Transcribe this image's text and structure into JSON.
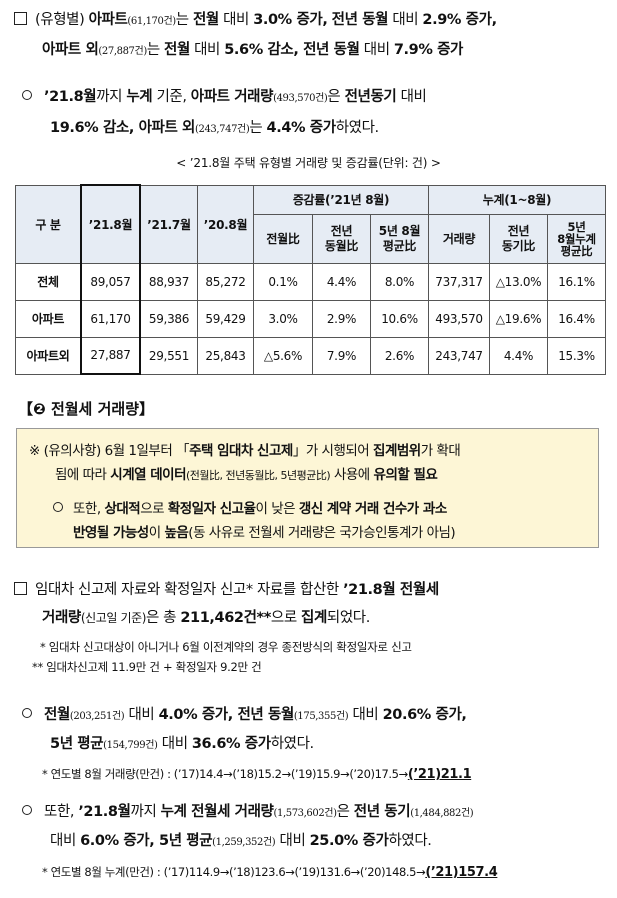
{
  "p1": {
    "a": "(유형별)",
    "b": "아파트",
    "c": "(61,170건)",
    "d": "는",
    "e": "전월",
    "f": "대비",
    "g": "3.0% 증가,",
    "h": "전년 동월",
    "i": "대비",
    "j": "2.9% 증가,",
    "k": "아파트 외",
    "l": "(27,887건)",
    "m": "는",
    "n": "전월",
    "o": "대비",
    "p": "5.6% 감소, 전년 동월",
    "q": "대비",
    "r": "7.9% 증가"
  },
  "p2": {
    "a": "’21.8월",
    "b": "까지",
    "c": "누계",
    "d": "기준,",
    "e": "아파트 거래량",
    "f": "(493,570건)",
    "g": "은",
    "h": "전년동기",
    "i": "대비",
    "j": "19.6% 감소, 아파트 외",
    "k": "(243,747건)",
    "l": "는",
    "m": "4.4% 증가",
    "n": "하였다."
  },
  "table_caption": "< ’21.8월 주택 유형별 거래량 및 증감률(단위: 건) >",
  "table": {
    "h_gubun": "구 분",
    "h_c1": "’21.8월",
    "h_c2": "’21.7월",
    "h_c3": "’20.8월",
    "h_rate": "증감률(’21년 8월)",
    "h_cum": "누계(1~8월)",
    "h_r1": "전월比",
    "h_r2": "전년\n동월比",
    "h_r3": "5년 8월\n평균比",
    "h_k1": "거래량",
    "h_k2": "전년\n동기比",
    "h_k3": "5년\n8월누계\n평균比",
    "rows": [
      {
        "label": "전체",
        "v": [
          "89,057",
          "88,937",
          "85,272",
          "0.1%",
          "4.4%",
          "8.0%",
          "737,317",
          "△13.0%",
          "16.1%"
        ]
      },
      {
        "label": "아파트",
        "v": [
          "61,170",
          "59,386",
          "59,429",
          "3.0%",
          "2.9%",
          "10.6%",
          "493,570",
          "△19.6%",
          "16.4%"
        ]
      },
      {
        "label": "아파트외",
        "v": [
          "27,887",
          "29,551",
          "25,843",
          "△5.6%",
          "7.9%",
          "2.6%",
          "243,747",
          "4.4%",
          "15.3%"
        ]
      }
    ]
  },
  "section": {
    "num": "❷",
    "title": "전월세 거래량",
    "lead_bracket": "【",
    "tail_bracket": "】"
  },
  "notice": {
    "l1a": "※ (유의사항) 6월 1일부터 「",
    "l1b": "주택 임대차 신고제",
    "l1c": "」가 시행되어",
    "l1d": "집계범위",
    "l1e": "가 확대",
    "l2a": "됨에 따라",
    "l2b": "시계열 데이터",
    "l2c": "(전월比, 전년동월比, 5년평균比)",
    "l2d": "사용에",
    "l2e": "유의할 필요",
    "l3a": "또한,",
    "l3b": "상대적",
    "l3c": "으로",
    "l3d": "확정일자 신고율",
    "l3e": "이 낮은",
    "l3f": "갱신 계약 거래 건수가 과소",
    "l4a": "반영될 가능성",
    "l4b": "이",
    "l4c": "높음",
    "l4d": "(동 사유로 전월세 거래량은 국가승인통계가 아님)"
  },
  "p3": {
    "a": "임대차 신고제 자료와 확정일자 신고* 자료를 합산한",
    "b": "’21.8월 전월세",
    "c": "거래량",
    "d": "(신고일 기준)",
    "e": "은 총",
    "f": "211,462건",
    "g": "**",
    "h": "으로",
    "i": "집계",
    "j": "되었다."
  },
  "fn1": "* 임대차 신고대상이 아니거나 6월 이전계약의 경우 종전방식의 확정일자로 신고",
  "fn2": "** 임대차신고제 11.9만 건 + 확정일자 9.2만 건",
  "p4": {
    "a": "전월",
    "b": "(203,251건)",
    "c": "대비",
    "d": "4.0% 증가, 전년 동월",
    "e": "(175,355건)",
    "f": "대비",
    "g": "20.6% 증가,",
    "h": "5년 평균",
    "i": "(154,799건)",
    "j": "대비",
    "k": "36.6% 증가",
    "l": "하였다."
  },
  "fn3a": "* 연도별 8월 거래량(만건) : (’17)14.4→(’18)15.2→(’19)15.9→(’20)17.5→",
  "fn3b": "(’21)21.1",
  "p5": {
    "a": "또한,",
    "b": "’21.8월",
    "c": "까지",
    "d": "누계 전월세 거래량",
    "e": "(1,573,602건)",
    "f": "은",
    "g": "전년 동기",
    "h": "(1,484,882건)",
    "i": "대비",
    "j": "6.0% 증가, 5년 평균",
    "k": "(1,259,352건)",
    "l": "대비",
    "m": "25.0% 증가",
    "n": "하였다."
  },
  "fn4a": "* 연도별 8월 누계(만건) : (’17)114.9→(’18)123.6→(’19)131.6→(’20)148.5→",
  "fn4b": "(’21)157.4",
  "colors": {
    "table_header": "#e6ecf4",
    "notice_bg": "#fdf6d6"
  }
}
